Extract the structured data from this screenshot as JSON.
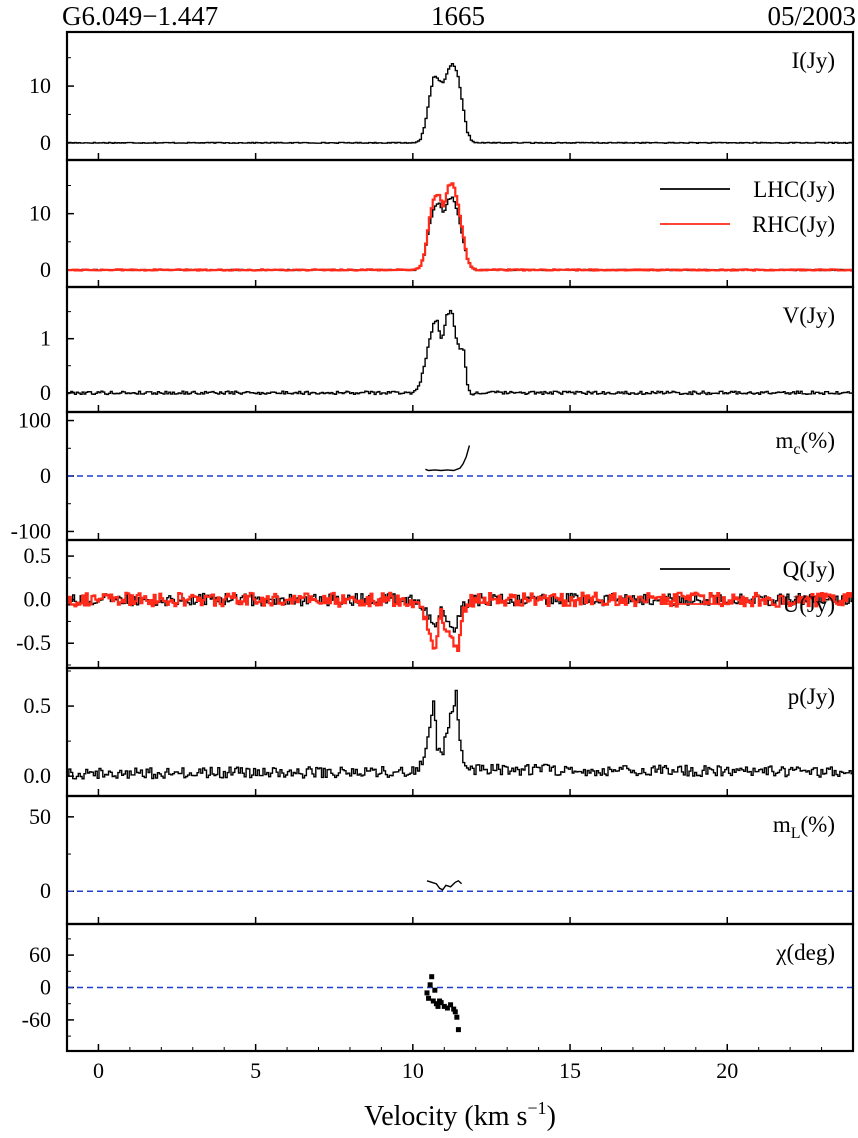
{
  "header": {
    "source": "G6.049−1.447",
    "frequency": "1665",
    "epoch": "05/2003"
  },
  "xaxis": {
    "label_main": "Velocity (km s",
    "label_sup": "−1",
    "label_close": ")"
  },
  "colors": {
    "black": "#000000",
    "red": "#ff2a1a",
    "dashed_blue": "#1f3fd0"
  },
  "chart_data": {
    "type": "line",
    "x_range": [
      -1,
      24
    ],
    "x_ticks": [
      0,
      5,
      10,
      15,
      20
    ],
    "x_tick_labels": [
      "0",
      "5",
      "10",
      "15",
      "20"
    ],
    "panels": [
      {
        "id": "I",
        "label": "I(Jy)",
        "label_sub": "",
        "label_rest": "",
        "ylim": [
          -2.5,
          19
        ],
        "y_ticks": [
          0,
          10
        ],
        "y_tick_labels": [
          "0",
          "10"
        ],
        "series": [
          {
            "color": "black",
            "points": [
              [
                -1,
                0
              ],
              [
                10.05,
                0
              ],
              [
                10.2,
                0.5
              ],
              [
                10.35,
                3
              ],
              [
                10.5,
                8
              ],
              [
                10.65,
                12
              ],
              [
                10.8,
                11
              ],
              [
                10.95,
                10.5
              ],
              [
                11.1,
                13
              ],
              [
                11.25,
                14
              ],
              [
                11.4,
                12
              ],
              [
                11.55,
                7
              ],
              [
                11.7,
                2
              ],
              [
                11.85,
                0.3
              ],
              [
                12.0,
                0
              ],
              [
                24,
                0
              ]
            ],
            "noise": 0.08
          }
        ]
      },
      {
        "id": "LR",
        "label": "",
        "ylim": [
          -2.5,
          19
        ],
        "y_ticks": [
          0,
          10
        ],
        "y_tick_labels": [
          "0",
          "10"
        ],
        "legend": [
          {
            "text": "LHC(Jy)",
            "color": "black"
          },
          {
            "text": "RHC(Jy)",
            "color": "red"
          }
        ],
        "series": [
          {
            "name": "LHC(Jy)",
            "color": "black",
            "points": [
              [
                -1,
                0
              ],
              [
                10.05,
                0
              ],
              [
                10.2,
                0.5
              ],
              [
                10.35,
                3
              ],
              [
                10.5,
                8
              ],
              [
                10.65,
                11
              ],
              [
                10.8,
                12
              ],
              [
                10.95,
                10
              ],
              [
                11.1,
                12.5
              ],
              [
                11.25,
                13
              ],
              [
                11.4,
                10
              ],
              [
                11.55,
                6
              ],
              [
                11.7,
                2
              ],
              [
                11.85,
                0.3
              ],
              [
                12.0,
                0
              ],
              [
                24,
                0
              ]
            ],
            "noise": 0.1
          },
          {
            "name": "RHC(Jy)",
            "color": "red",
            "points": [
              [
                -1,
                0
              ],
              [
                10.05,
                0
              ],
              [
                10.2,
                0.5
              ],
              [
                10.35,
                3
              ],
              [
                10.5,
                9
              ],
              [
                10.65,
                13
              ],
              [
                10.8,
                13.5
              ],
              [
                10.95,
                11
              ],
              [
                11.1,
                15
              ],
              [
                11.25,
                15.5
              ],
              [
                11.4,
                12
              ],
              [
                11.55,
                7
              ],
              [
                11.7,
                2
              ],
              [
                11.85,
                0.3
              ],
              [
                12.0,
                0
              ],
              [
                24,
                0
              ]
            ],
            "noise": 0.1
          }
        ]
      },
      {
        "id": "V",
        "label": "V(Jy)",
        "label_sub": "",
        "label_rest": "",
        "ylim": [
          -0.3,
          1.9
        ],
        "y_ticks": [
          0,
          1
        ],
        "y_tick_labels": [
          "0",
          "1"
        ],
        "series": [
          {
            "color": "black",
            "points": [
              [
                -1,
                0
              ],
              [
                10.0,
                0
              ],
              [
                10.2,
                0.2
              ],
              [
                10.35,
                0.5
              ],
              [
                10.5,
                1.0
              ],
              [
                10.65,
                1.3
              ],
              [
                10.75,
                1.35
              ],
              [
                10.85,
                1.0
              ],
              [
                10.95,
                1.1
              ],
              [
                11.05,
                1.45
              ],
              [
                11.2,
                1.55
              ],
              [
                11.35,
                1.0
              ],
              [
                11.5,
                0.8
              ],
              [
                11.6,
                0.8
              ],
              [
                11.7,
                0.2
              ],
              [
                11.8,
                -0.05
              ],
              [
                12.0,
                0
              ],
              [
                24,
                0
              ]
            ],
            "noise": 0.03
          }
        ]
      },
      {
        "id": "mc",
        "label": "m",
        "label_sub": "c",
        "label_rest": "(%)",
        "ylim": [
          -110,
          110
        ],
        "y_ticks": [
          -100,
          0,
          100
        ],
        "y_tick_labels": [
          "-100",
          "0",
          "100"
        ],
        "zero_line": true,
        "series": [
          {
            "color": "black",
            "points": [
              [
                10.4,
                12
              ],
              [
                10.5,
                10
              ],
              [
                10.7,
                11
              ],
              [
                10.9,
                10
              ],
              [
                11.1,
                11
              ],
              [
                11.3,
                10
              ],
              [
                11.5,
                14
              ],
              [
                11.6,
                22
              ],
              [
                11.7,
                35
              ],
              [
                11.8,
                55
              ]
            ],
            "noise": 0
          }
        ]
      },
      {
        "id": "QU",
        "label": "",
        "ylim": [
          -0.75,
          0.65
        ],
        "y_ticks": [
          -0.5,
          0.0,
          0.5
        ],
        "y_tick_labels": [
          "-0.5",
          "0.0",
          "0.5"
        ],
        "legend": [
          {
            "text": "Q(Jy)",
            "color": "black"
          },
          {
            "text": "U(Jy)",
            "color": "red"
          }
        ],
        "series": [
          {
            "name": "Q(Jy)",
            "color": "black",
            "points": [
              [
                -1,
                0
              ],
              [
                9.8,
                0
              ],
              [
                10.2,
                -0.05
              ],
              [
                10.5,
                -0.2
              ],
              [
                10.7,
                -0.35
              ],
              [
                10.9,
                -0.1
              ],
              [
                11.1,
                -0.3
              ],
              [
                11.3,
                -0.4
              ],
              [
                11.5,
                -0.1
              ],
              [
                11.8,
                0
              ],
              [
                24,
                0
              ]
            ],
            "noise": 0.07
          },
          {
            "name": "U(Jy)",
            "color": "red",
            "points": [
              [
                -1,
                0
              ],
              [
                9.8,
                0
              ],
              [
                10.2,
                -0.05
              ],
              [
                10.4,
                -0.25
              ],
              [
                10.6,
                -0.55
              ],
              [
                10.7,
                -0.5
              ],
              [
                10.85,
                -0.15
              ],
              [
                11.0,
                -0.3
              ],
              [
                11.2,
                -0.45
              ],
              [
                11.4,
                -0.55
              ],
              [
                11.6,
                -0.1
              ],
              [
                11.8,
                0
              ],
              [
                24,
                0
              ]
            ],
            "noise": 0.08
          }
        ]
      },
      {
        "id": "p",
        "label": "p(Jy)",
        "label_sub": "",
        "label_rest": "",
        "ylim": [
          -0.12,
          0.75
        ],
        "y_ticks": [
          0.0,
          0.5
        ],
        "y_tick_labels": [
          "0.0",
          "0.5"
        ],
        "series": [
          {
            "color": "black",
            "points": [
              [
                -1,
                0.02
              ],
              [
                10.0,
                0.03
              ],
              [
                10.2,
                0.08
              ],
              [
                10.4,
                0.2
              ],
              [
                10.55,
                0.45
              ],
              [
                10.65,
                0.55
              ],
              [
                10.75,
                0.2
              ],
              [
                10.9,
                0.15
              ],
              [
                11.05,
                0.3
              ],
              [
                11.2,
                0.45
              ],
              [
                11.35,
                0.58
              ],
              [
                11.5,
                0.2
              ],
              [
                11.7,
                0.05
              ],
              [
                24,
                0.03
              ]
            ],
            "noise": 0.04
          }
        ]
      },
      {
        "id": "mL",
        "label": "m",
        "label_sub": "L",
        "label_rest": "(%)",
        "ylim": [
          -20,
          62
        ],
        "y_ticks": [
          0,
          50
        ],
        "y_tick_labels": [
          "0",
          "50"
        ],
        "zero_line": true,
        "series": [
          {
            "color": "black",
            "points": [
              [
                10.45,
                7
              ],
              [
                10.6,
                6
              ],
              [
                10.75,
                5
              ],
              [
                10.85,
                2
              ],
              [
                10.95,
                1
              ],
              [
                11.05,
                4
              ],
              [
                11.2,
                3
              ],
              [
                11.35,
                6
              ],
              [
                11.45,
                7
              ],
              [
                11.55,
                5
              ]
            ],
            "noise": 0
          }
        ]
      },
      {
        "id": "chi",
        "label": "χ(deg)",
        "label_sub": "",
        "label_rest": "",
        "ylim": [
          -112,
          112
        ],
        "y_ticks": [
          -60,
          0,
          60
        ],
        "y_tick_labels": [
          "-60",
          "0",
          "60"
        ],
        "zero_line": true,
        "scatter": [
          [
            10.45,
            -10
          ],
          [
            10.5,
            -20
          ],
          [
            10.55,
            5
          ],
          [
            10.6,
            20
          ],
          [
            10.65,
            -25
          ],
          [
            10.7,
            -5
          ],
          [
            10.75,
            -30
          ],
          [
            10.8,
            -35
          ],
          [
            10.85,
            -25
          ],
          [
            10.9,
            -28
          ],
          [
            11.0,
            -35
          ],
          [
            11.1,
            -38
          ],
          [
            11.2,
            -32
          ],
          [
            11.3,
            -40
          ],
          [
            11.35,
            -45
          ],
          [
            11.4,
            -55
          ],
          [
            11.45,
            -78
          ]
        ]
      }
    ]
  }
}
